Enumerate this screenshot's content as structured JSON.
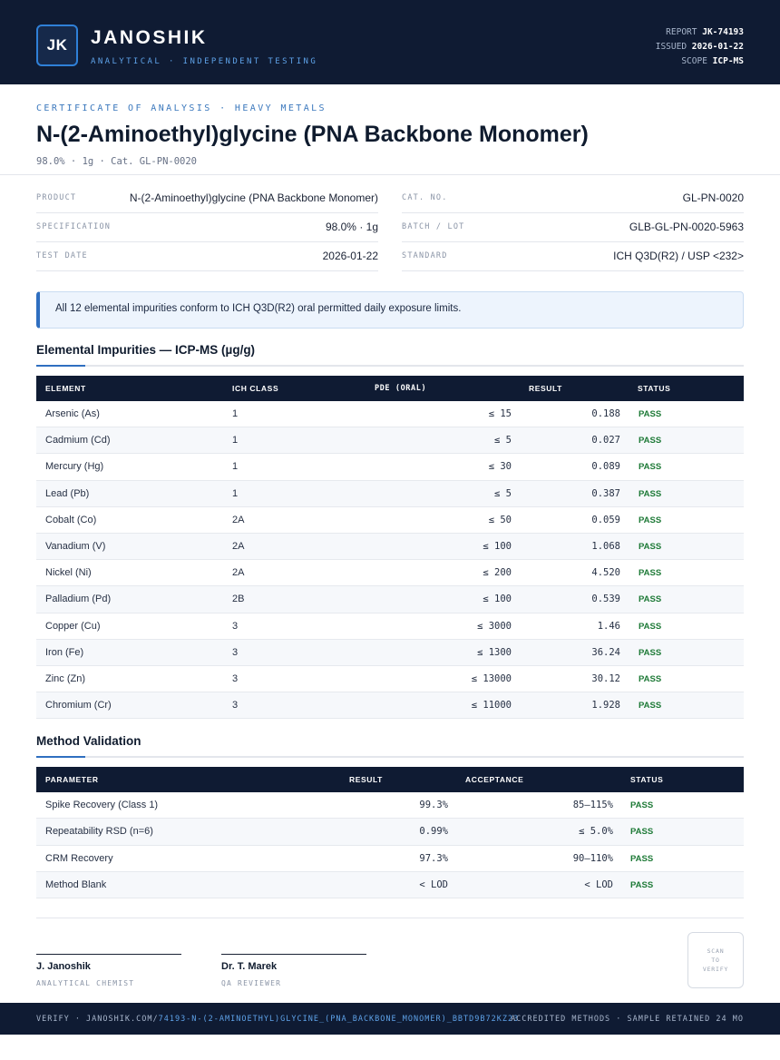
{
  "header": {
    "logo_text": "JK",
    "brand": "JANOSHIK",
    "brand_sub": "ANALYTICAL · INDEPENDENT TESTING",
    "report_label": "REPORT",
    "report_value": "JK-74193",
    "issued_label": "ISSUED",
    "issued_value": "2026-01-22",
    "scope_label": "SCOPE",
    "scope_value": "ICP-MS"
  },
  "title_block": {
    "eyebrow": "CERTIFICATE OF ANALYSIS · HEAVY METALS",
    "title": "N-(2-Aminoethyl)glycine (PNA Backbone Monomer)",
    "subline": "98.0% · 1g  ·  Cat. GL-PN-0020"
  },
  "info": {
    "product_label": "PRODUCT",
    "product_value": "N-(2-Aminoethyl)glycine (PNA Backbone Monomer)",
    "spec_label": "SPECIFICATION",
    "spec_value": "98.0% · 1g",
    "date_label": "TEST DATE",
    "date_value": "2026-01-22",
    "cat_label": "CAT. NO.",
    "cat_value": "GL-PN-0020",
    "batch_label": "BATCH / LOT",
    "batch_value": "GLB-GL-PN-0020-5963",
    "standard_label": "STANDARD",
    "standard_value": "ICH Q3D(R2) / USP <232>"
  },
  "notice": "All 12 elemental impurities conform to ICH Q3D(R2) oral permitted daily exposure limits.",
  "impurities": {
    "title": "Elemental Impurities — ICP-MS (µg/g)",
    "headers": [
      "ELEMENT",
      "ICH CLASS",
      "PDE (ORAL)",
      "RESULT",
      "STATUS"
    ],
    "rows": [
      [
        "Arsenic (As)",
        "1",
        "≤ 15",
        "0.188",
        "PASS"
      ],
      [
        "Cadmium (Cd)",
        "1",
        "≤ 5",
        "0.027",
        "PASS"
      ],
      [
        "Mercury (Hg)",
        "1",
        "≤ 30",
        "0.089",
        "PASS"
      ],
      [
        "Lead (Pb)",
        "1",
        "≤ 5",
        "0.387",
        "PASS"
      ],
      [
        "Cobalt (Co)",
        "2A",
        "≤ 50",
        "0.059",
        "PASS"
      ],
      [
        "Vanadium (V)",
        "2A",
        "≤ 100",
        "1.068",
        "PASS"
      ],
      [
        "Nickel (Ni)",
        "2A",
        "≤ 200",
        "4.520",
        "PASS"
      ],
      [
        "Palladium (Pd)",
        "2B",
        "≤ 100",
        "0.539",
        "PASS"
      ],
      [
        "Copper (Cu)",
        "3",
        "≤ 3000",
        "1.46",
        "PASS"
      ],
      [
        "Iron (Fe)",
        "3",
        "≤ 1300",
        "36.24",
        "PASS"
      ],
      [
        "Zinc (Zn)",
        "3",
        "≤ 13000",
        "30.12",
        "PASS"
      ],
      [
        "Chromium (Cr)",
        "3",
        "≤ 11000",
        "1.928",
        "PASS"
      ]
    ]
  },
  "validation": {
    "title": "Method Validation",
    "headers": [
      "PARAMETER",
      "RESULT",
      "ACCEPTANCE",
      "STATUS"
    ],
    "rows": [
      [
        "Spike Recovery (Class 1)",
        "99.3%",
        "85–115%",
        "PASS"
      ],
      [
        "Repeatability RSD (n=6)",
        "0.99%",
        "≤ 5.0%",
        "PASS"
      ],
      [
        "CRM Recovery",
        "97.3%",
        "90–110%",
        "PASS"
      ],
      [
        "Method Blank",
        "< LOD",
        "< LOD",
        "PASS"
      ]
    ]
  },
  "signatures": [
    {
      "name": "J. Janoshik",
      "role": "ANALYTICAL CHEMIST"
    },
    {
      "name": "Dr. T. Marek",
      "role": "QA REVIEWER"
    }
  ],
  "qr": {
    "line1": "SCAN",
    "line2": "TO",
    "line3": "VERIFY"
  },
  "footer": {
    "verify_prefix": "VERIFY · JANOSHIK.COM/",
    "verify_path": "74193-N-(2-AMINOETHYL)GLYCINE_(PNA_BACKBONE_MONOMER)_BBTD9B72KZ23",
    "right": "ACCREDITED METHODS · SAMPLE RETAINED 24 MO"
  }
}
